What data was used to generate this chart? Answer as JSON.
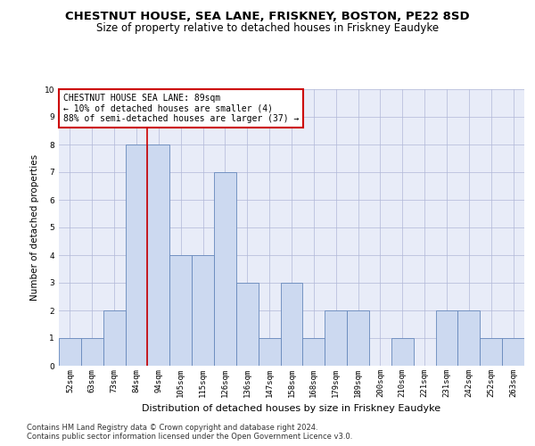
{
  "title": "CHESTNUT HOUSE, SEA LANE, FRISKNEY, BOSTON, PE22 8SD",
  "subtitle": "Size of property relative to detached houses in Friskney Eaudyke",
  "xlabel": "Distribution of detached houses by size in Friskney Eaudyke",
  "ylabel": "Number of detached properties",
  "categories": [
    "52sqm",
    "63sqm",
    "73sqm",
    "84sqm",
    "94sqm",
    "105sqm",
    "115sqm",
    "126sqm",
    "136sqm",
    "147sqm",
    "158sqm",
    "168sqm",
    "179sqm",
    "189sqm",
    "200sqm",
    "210sqm",
    "221sqm",
    "231sqm",
    "242sqm",
    "252sqm",
    "263sqm"
  ],
  "values": [
    1,
    1,
    2,
    8,
    8,
    4,
    4,
    7,
    3,
    1,
    3,
    1,
    2,
    2,
    0,
    1,
    0,
    2,
    2,
    1,
    1
  ],
  "bar_color": "#ccd9f0",
  "bar_edge_color": "#6688bb",
  "vline_x": 3.5,
  "vline_color": "#cc0000",
  "annotation_box_text": "CHESTNUT HOUSE SEA LANE: 89sqm\n← 10% of detached houses are smaller (4)\n88% of semi-detached houses are larger (37) →",
  "box_color": "#cc0000",
  "ylim": [
    0,
    10
  ],
  "yticks": [
    0,
    1,
    2,
    3,
    4,
    5,
    6,
    7,
    8,
    9,
    10
  ],
  "grid_color": "#b0b8d8",
  "bg_color": "#e8ecf8",
  "footnote1": "Contains HM Land Registry data © Crown copyright and database right 2024.",
  "footnote2": "Contains public sector information licensed under the Open Government Licence v3.0.",
  "title_fontsize": 9.5,
  "subtitle_fontsize": 8.5,
  "xlabel_fontsize": 8,
  "ylabel_fontsize": 7.5,
  "tick_fontsize": 6.5,
  "annotation_fontsize": 7,
  "footnote_fontsize": 6
}
